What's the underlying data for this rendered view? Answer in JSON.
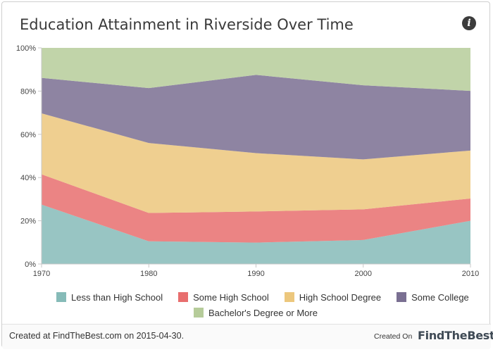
{
  "title": "Education Attainment in Riverside Over Time",
  "info_icon": "info-icon",
  "footer": {
    "created_text": "Created at FindTheBest.com on 2015-04-30.",
    "created_on_label": "Created On",
    "brand": "FindTheBest"
  },
  "chart_data": {
    "type": "area",
    "stacked": true,
    "percent": true,
    "x": [
      1970,
      1980,
      1990,
      2000,
      2010
    ],
    "x_tick_labels": [
      "1970",
      "1980",
      "1990",
      "2000",
      "2010"
    ],
    "ylim": [
      0,
      100
    ],
    "y_ticks": [
      0,
      20,
      40,
      60,
      80,
      100
    ],
    "y_tick_labels": [
      "0%",
      "20%",
      "40%",
      "60%",
      "80%",
      "100%"
    ],
    "grid": false,
    "legend_position": "bottom",
    "series": [
      {
        "name": "Less than High School",
        "color": "#86bbb8",
        "values": [
          27.5,
          10.5,
          9.9,
          11.1,
          20.0
        ]
      },
      {
        "name": "Some High School",
        "color": "#e86e6e",
        "values": [
          14.0,
          13.1,
          14.4,
          14.2,
          10.3
        ]
      },
      {
        "name": "High School Degree",
        "color": "#ecc77d",
        "values": [
          28.2,
          32.4,
          27.0,
          23.1,
          22.2
        ]
      },
      {
        "name": "Some College",
        "color": "#7a6f92",
        "values": [
          16.4,
          25.4,
          36.2,
          34.3,
          27.6
        ]
      },
      {
        "name": "Bachelor's Degree or More",
        "color": "#b6cc9a",
        "values": [
          13.9,
          18.6,
          12.5,
          17.3,
          19.9
        ]
      }
    ]
  }
}
